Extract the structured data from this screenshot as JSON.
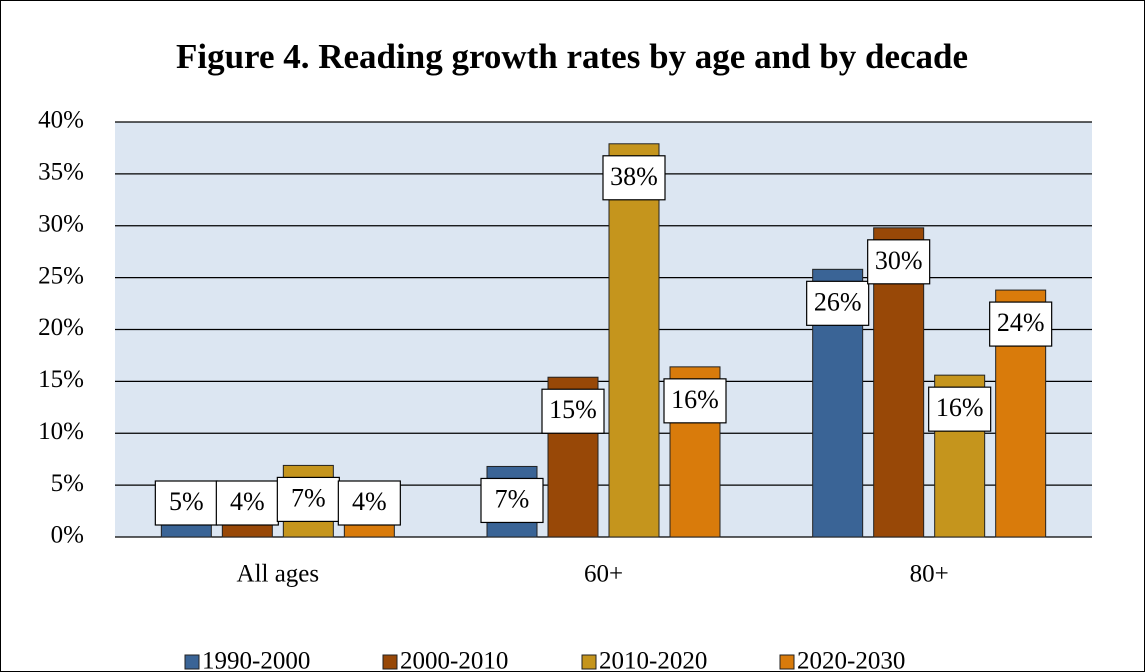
{
  "chart_data": {
    "type": "bar",
    "title": "Figure 4. Reading growth rates by age and by decade",
    "categories": [
      "All ages",
      "60+",
      "80+"
    ],
    "series": [
      {
        "name": "1990-2000",
        "color": "#3a6496",
        "values": [
          4.6,
          6.8,
          25.8
        ],
        "value_labels": [
          "5%",
          "7%",
          "26%"
        ]
      },
      {
        "name": "2000-2010",
        "color": "#984807",
        "values": [
          4.2,
          15.4,
          29.8
        ],
        "value_labels": [
          "4%",
          "15%",
          "30%"
        ]
      },
      {
        "name": "2010-2020",
        "color": "#c5951d",
        "values": [
          6.9,
          37.9,
          15.6
        ],
        "value_labels": [
          "7%",
          "38%",
          "16%"
        ]
      },
      {
        "name": "2020-2030",
        "color": "#d97b0b",
        "values": [
          4.1,
          16.4,
          23.8
        ],
        "value_labels": [
          "4%",
          "16%",
          "24%"
        ]
      }
    ],
    "ylim": [
      0,
      40
    ],
    "yticks": [
      {
        "value": 0,
        "label": "0%"
      },
      {
        "value": 5,
        "label": "5%"
      },
      {
        "value": 10,
        "label": "10%"
      },
      {
        "value": 15,
        "label": "15%"
      },
      {
        "value": 20,
        "label": "20%"
      },
      {
        "value": 25,
        "label": "25%"
      },
      {
        "value": 30,
        "label": "30%"
      },
      {
        "value": 35,
        "label": "35%"
      },
      {
        "value": 40,
        "label": "40%"
      }
    ],
    "grid": true,
    "legend": "bottom"
  }
}
